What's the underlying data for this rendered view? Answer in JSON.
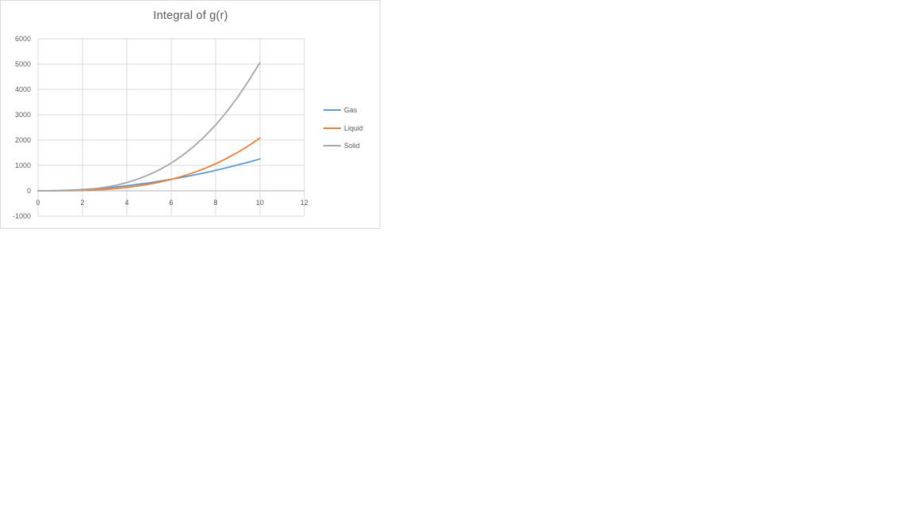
{
  "chart": {
    "title": "Integral of g(r)",
    "text_color": "#595959",
    "border_color": "#d9d9d9",
    "gridline_color": "#d9d9d9",
    "axis_line_color": "#bfbfbf",
    "background": "#ffffff"
  },
  "chart_data": {
    "type": "line",
    "title": "Integral of g(r)",
    "x": [
      0,
      0.5,
      1,
      1.5,
      2,
      2.5,
      3,
      3.5,
      4,
      4.5,
      5,
      5.5,
      6,
      6.5,
      7,
      7.5,
      8,
      8.5,
      9,
      9.5,
      10
    ],
    "series": [
      {
        "name": "Gas",
        "color": "#5b9bd5",
        "values": [
          0,
          3,
          13,
          28,
          50,
          79,
          113,
          154,
          201,
          255,
          314,
          380,
          452,
          531,
          616,
          707,
          804,
          908,
          1018,
          1134,
          1257
        ]
      },
      {
        "name": "Liquid",
        "color": "#ed7d31",
        "values": [
          0,
          0,
          2,
          7,
          17,
          33,
          56,
          89,
          133,
          190,
          260,
          346,
          449,
          571,
          713,
          878,
          1065,
          1278,
          1516,
          1783,
          2080
        ]
      },
      {
        "name": "Solid",
        "color": "#a5a5a5",
        "values": [
          0,
          1,
          5,
          17,
          40,
          79,
          137,
          217,
          324,
          461,
          633,
          842,
          1093,
          1390,
          1737,
          2137,
          2596,
          3116,
          3702,
          4357,
          5060
        ]
      }
    ],
    "xlim": [
      0,
      12
    ],
    "ylim": [
      -1000,
      6000
    ],
    "x_ticks": [
      0,
      2,
      4,
      6,
      8,
      10,
      12
    ],
    "y_ticks": [
      -1000,
      0,
      1000,
      2000,
      3000,
      4000,
      5000,
      6000
    ],
    "grid": true,
    "legend_position": "right",
    "xlabel": "",
    "ylabel": ""
  }
}
